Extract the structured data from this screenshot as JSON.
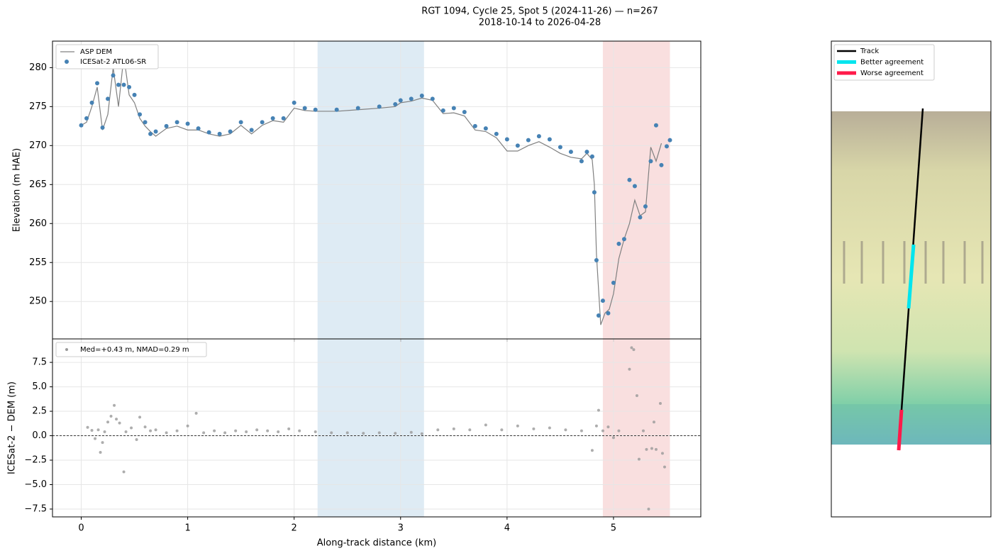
{
  "chart_data": [
    {
      "type": "line+scatter",
      "title": "RGT 1094, Cycle 25, Spot 5 (2024-11-26) — n=267",
      "subtitle": "2018-10-14 to 2026-04-28",
      "y_label": "Elevation (m HAE)",
      "xlim": [
        -0.27,
        5.82
      ],
      "xticks": [
        0,
        1,
        2,
        3,
        4,
        5
      ],
      "ylim": [
        245.2,
        283.4
      ],
      "yticks": [
        250,
        255,
        260,
        265,
        270,
        275,
        280
      ],
      "grid": true,
      "legend": "upper left",
      "shaded_regions": [
        {
          "xlim": [
            2.22,
            3.22
          ],
          "color": "#1f77b4"
        },
        {
          "xlim": [
            4.9,
            5.53
          ],
          "color": "#d62728"
        }
      ],
      "series": [
        {
          "name": "ASP DEM",
          "type": "line",
          "color": "#808080",
          "x": [
            0,
            0.05,
            0.1,
            0.15,
            0.2,
            0.25,
            0.3,
            0.35,
            0.4,
            0.45,
            0.5,
            0.55,
            0.6,
            0.65,
            0.7,
            0.8,
            0.9,
            1.0,
            1.1,
            1.2,
            1.3,
            1.4,
            1.5,
            1.6,
            1.7,
            1.8,
            1.9,
            2.0,
            2.1,
            2.2,
            2.4,
            2.6,
            2.8,
            2.95,
            3.0,
            3.1,
            3.2,
            3.3,
            3.4,
            3.5,
            3.6,
            3.7,
            3.8,
            3.9,
            4.0,
            4.1,
            4.2,
            4.3,
            4.4,
            4.5,
            4.6,
            4.7,
            4.75,
            4.8,
            4.82,
            4.84,
            4.88,
            4.92,
            4.96,
            5.0,
            5.05,
            5.1,
            5.15,
            5.2,
            5.25,
            5.3,
            5.35,
            5.4,
            5.45
          ],
          "values": [
            272.6,
            273,
            275,
            277.5,
            272,
            274,
            280,
            275,
            281.5,
            276.5,
            275.5,
            273.5,
            272.5,
            271.8,
            271.2,
            272.2,
            272.5,
            272,
            272,
            271.5,
            271.2,
            271.5,
            272.6,
            271.5,
            272.6,
            273.2,
            273,
            274.8,
            274.5,
            274.4,
            274.4,
            274.6,
            274.8,
            275,
            275.5,
            275.7,
            276.1,
            275.8,
            274.1,
            274.2,
            273.8,
            272,
            271.8,
            271,
            269.3,
            269.3,
            270,
            270.5,
            269.8,
            269,
            268.5,
            268.3,
            269,
            268.2,
            265,
            256,
            247,
            248.5,
            249,
            251,
            255.5,
            258,
            260,
            263,
            261,
            261.5,
            269.8,
            268,
            270.3
          ]
        },
        {
          "name": "ICESat-2 ATL06-SR",
          "type": "scatter",
          "color": "#4682b4",
          "x": [
            0,
            0.05,
            0.1,
            0.15,
            0.2,
            0.25,
            0.3,
            0.35,
            0.4,
            0.45,
            0.5,
            0.55,
            0.6,
            0.65,
            0.7,
            0.8,
            0.9,
            1.0,
            1.1,
            1.2,
            1.3,
            1.4,
            1.5,
            1.6,
            1.7,
            1.8,
            1.9,
            2.0,
            2.1,
            2.2,
            2.4,
            2.6,
            2.8,
            2.95,
            3.0,
            3.1,
            3.2,
            3.3,
            3.4,
            3.5,
            3.6,
            3.7,
            3.8,
            3.9,
            4.0,
            4.1,
            4.2,
            4.3,
            4.4,
            4.5,
            4.6,
            4.7,
            4.75,
            4.8,
            4.82,
            4.84,
            4.86,
            4.9,
            4.95,
            5.0,
            5.05,
            5.1,
            5.15,
            5.2,
            5.25,
            5.3,
            5.35,
            5.4,
            5.45,
            5.5,
            5.53
          ],
          "values": [
            272.6,
            273.5,
            275.5,
            278,
            272.3,
            276,
            279,
            277.8,
            277.8,
            277.5,
            276.5,
            274,
            273,
            271.5,
            271.8,
            272.5,
            273,
            272.8,
            272.2,
            271.7,
            271.5,
            271.8,
            273,
            272,
            273,
            273.5,
            273.5,
            275.5,
            274.8,
            274.6,
            274.6,
            274.8,
            275,
            275.3,
            275.8,
            276,
            276.4,
            276,
            274.5,
            274.8,
            274.3,
            272.5,
            272.2,
            271.5,
            270.8,
            270,
            270.7,
            271.2,
            270.8,
            269.8,
            269.2,
            268,
            269.2,
            268.6,
            264,
            255.3,
            248.2,
            250.1,
            248.5,
            252.4,
            257.4,
            258,
            265.6,
            264.8,
            260.8,
            262.2,
            268,
            272.6,
            267.5,
            269.9,
            270.7
          ]
        }
      ]
    },
    {
      "type": "scatter",
      "x_label": "Along-track distance (km)",
      "y_label": "ICESat-2 − DEM (m)",
      "xlim": [
        -0.27,
        5.82
      ],
      "xticks": [
        0,
        1,
        2,
        3,
        4,
        5
      ],
      "ylim": [
        -8.3,
        9.9
      ],
      "yticks": [
        {
          "value": -7.5,
          "label": "−7.5"
        },
        {
          "value": -5,
          "label": "−5.0"
        },
        {
          "value": -2.5,
          "label": "−2.5"
        },
        {
          "value": 0,
          "label": "0.0"
        },
        {
          "value": 2.5,
          "label": "2.5"
        },
        {
          "value": 5,
          "label": "5.0"
        },
        {
          "value": 7.5,
          "label": "7.5"
        }
      ],
      "grid": true,
      "legend": "upper left",
      "hline": 0,
      "shaded_regions": [
        {
          "xlim": [
            2.22,
            3.22
          ],
          "color": "#1f77b4"
        },
        {
          "xlim": [
            4.9,
            5.53
          ],
          "color": "#d62728"
        }
      ],
      "series": [
        {
          "name": "Med=+0.43 m, NMAD=0.29 m",
          "type": "scatter",
          "color": "#999999",
          "x": [
            0.06,
            0.1,
            0.13,
            0.16,
            0.18,
            0.2,
            0.22,
            0.25,
            0.28,
            0.31,
            0.33,
            0.36,
            0.4,
            0.42,
            0.47,
            0.52,
            0.55,
            0.6,
            0.65,
            0.7,
            0.8,
            0.9,
            1.0,
            1.08,
            1.15,
            1.25,
            1.35,
            1.45,
            1.55,
            1.65,
            1.75,
            1.85,
            1.95,
            2.05,
            2.2,
            2.35,
            2.5,
            2.65,
            2.8,
            2.95,
            3.1,
            3.2,
            3.35,
            3.5,
            3.65,
            3.8,
            3.95,
            4.1,
            4.25,
            4.4,
            4.55,
            4.7,
            4.8,
            4.84,
            4.86,
            4.9,
            4.95,
            5.0,
            5.05,
            5.15,
            5.17,
            5.19,
            5.22,
            5.24,
            5.28,
            5.31,
            5.33,
            5.36,
            5.38,
            5.4,
            5.44,
            5.46,
            5.48
          ],
          "values": [
            0.85,
            0.55,
            -0.3,
            0.6,
            -1.7,
            -0.7,
            0.4,
            1.4,
            2.0,
            3.1,
            1.7,
            1.3,
            -3.7,
            0.4,
            0.8,
            -0.4,
            1.9,
            0.9,
            0.5,
            0.6,
            0.3,
            0.5,
            1.0,
            2.3,
            0.3,
            0.5,
            0.3,
            0.5,
            0.4,
            0.6,
            0.5,
            0.4,
            0.7,
            0.5,
            0.4,
            0.3,
            0.3,
            0.25,
            0.3,
            0.25,
            0.35,
            0.2,
            0.6,
            0.7,
            0.6,
            1.1,
            0.6,
            1.0,
            0.7,
            0.8,
            0.6,
            0.5,
            -1.5,
            1.0,
            2.6,
            0.5,
            0.9,
            -0.2,
            0.5,
            6.8,
            9.0,
            8.8,
            4.1,
            -2.4,
            0.5,
            -1.4,
            -7.5,
            -1.3,
            1.4,
            -1.4,
            3.3,
            -1.8,
            -3.2
          ]
        }
      ]
    },
    {
      "type": "map",
      "legend": "upper left",
      "series": [
        {
          "name": "Track",
          "color": "#000000"
        },
        {
          "name": "Better agreement",
          "color": "#00e5ee"
        },
        {
          "name": "Worse agreement",
          "color": "#ff1a4a"
        }
      ]
    }
  ]
}
